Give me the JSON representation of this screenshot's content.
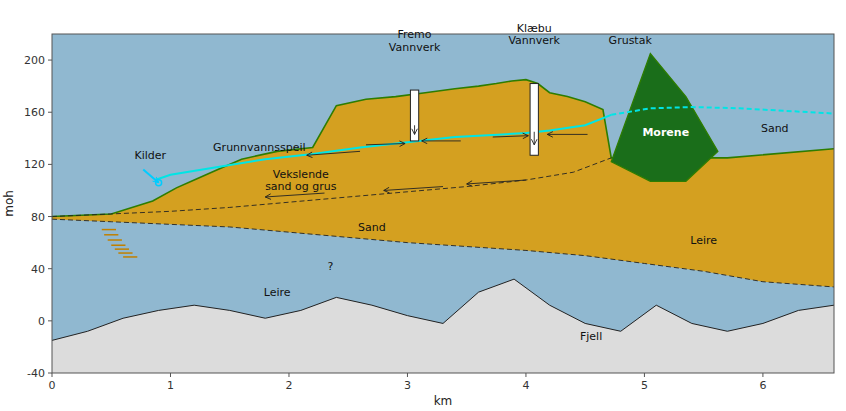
{
  "chart_data": {
    "type": "section",
    "xlabel": "km",
    "ylabel": "moh",
    "xlim": [
      0,
      6.6
    ],
    "ylim": [
      -40,
      220
    ],
    "xticks": [
      0,
      1,
      2,
      3,
      4,
      5,
      6
    ],
    "yticks": [
      -40,
      0,
      40,
      80,
      120,
      160,
      200
    ],
    "leire": {
      "color": "#90b8d0",
      "x": [
        0,
        6.6,
        6.6,
        0
      ],
      "y": [
        -40,
        -40,
        220,
        220
      ]
    },
    "fjell": {
      "color": "#dcdcdc",
      "x": [
        0.0,
        0.3,
        0.6,
        0.9,
        1.2,
        1.5,
        1.8,
        2.1,
        2.4,
        2.7,
        3.0,
        3.3,
        3.6,
        3.9,
        4.2,
        4.5,
        4.8,
        5.1,
        5.4,
        5.7,
        6.0,
        6.3,
        6.6
      ],
      "y": [
        -15,
        -8,
        2,
        8,
        12,
        8,
        2,
        8,
        18,
        12,
        4,
        -2,
        22,
        32,
        12,
        -2,
        -8,
        12,
        -2,
        -8,
        -2,
        8,
        12
      ],
      "base": -40
    },
    "leire_top": {
      "line_style": "dashed",
      "x": [
        0.0,
        0.5,
        1.0,
        1.5,
        2.0,
        2.5,
        3.0,
        3.5,
        4.0,
        4.5,
        5.0,
        5.5,
        6.0,
        6.6
      ],
      "y": [
        78,
        76,
        74,
        72,
        68,
        64,
        60,
        57,
        54,
        50,
        44,
        38,
        30,
        26
      ]
    },
    "sand": {
      "color": "#d4a020",
      "outline": "#2e7d00",
      "x": [
        0.0,
        0.5,
        0.85,
        1.05,
        1.2,
        1.4,
        1.6,
        1.9,
        2.2,
        2.4,
        2.65,
        2.9,
        3.15,
        3.4,
        3.6,
        3.75,
        3.88,
        4.0,
        4.1,
        4.2,
        4.35,
        4.5,
        4.65,
        4.72,
        5.7,
        6.6
      ],
      "y": [
        80,
        82,
        92,
        102,
        108,
        116,
        124,
        130,
        133,
        165,
        170,
        172,
        175,
        178,
        180,
        182,
        184,
        185,
        182,
        175,
        172,
        168,
        162,
        125,
        125,
        132
      ]
    },
    "morene": {
      "color": "#1a6e1a",
      "outline": "#2e7d00",
      "x": [
        4.72,
        5.05,
        5.35,
        5.62,
        5.35,
        5.05,
        4.72
      ],
      "y": [
        122,
        205,
        172,
        130,
        107,
        107,
        122
      ]
    },
    "vsg_boundary": {
      "line_style": "dashed",
      "x": [
        0.0,
        0.5,
        1.0,
        1.5,
        2.0,
        2.5,
        3.0,
        3.5,
        4.0,
        4.4,
        4.72
      ],
      "y": [
        80,
        82,
        84,
        87,
        91,
        95,
        99,
        103,
        108,
        114,
        125
      ]
    },
    "groundwater": {
      "color": "#00e5e5",
      "segments": [
        {
          "line_style": "solid",
          "x": [
            0.87,
            1.0,
            1.4,
            1.8,
            2.2,
            2.6,
            3.0,
            3.4,
            3.8,
            4.0,
            4.2,
            4.5,
            4.72
          ],
          "y": [
            108,
            112,
            118,
            124,
            128,
            133,
            137,
            141,
            143,
            144,
            146,
            150,
            158
          ]
        },
        {
          "line_style": "dashed",
          "x": [
            4.72,
            5.05,
            5.4,
            5.8,
            6.2,
            6.6
          ],
          "y": [
            158,
            163,
            164,
            163,
            161,
            159
          ]
        }
      ]
    },
    "boreholes": [
      {
        "x": 3.06,
        "half_width": 0.035,
        "bottom": 138,
        "top": 177
      },
      {
        "x": 4.07,
        "half_width": 0.035,
        "bottom": 127,
        "top": 182
      }
    ],
    "kilder": {
      "color": "#00ccff",
      "x": [
        0.77,
        0.9
      ],
      "y": [
        116,
        106
      ]
    },
    "seeps": {
      "color": "#c08000",
      "half_length": 0.06,
      "x": [
        0.48,
        0.5,
        0.53,
        0.56,
        0.59,
        0.62,
        0.66
      ],
      "y": [
        70,
        66,
        62,
        58,
        55,
        52,
        49
      ]
    },
    "flow_arrows": [
      {
        "x": [
          3.45,
          3.12
        ],
        "y": [
          138,
          138
        ]
      },
      {
        "x": [
          2.65,
          2.98
        ],
        "y": [
          135,
          136
        ]
      },
      {
        "x": [
          4.52,
          4.18
        ],
        "y": [
          143,
          143
        ]
      },
      {
        "x": [
          3.72,
          4.02
        ],
        "y": [
          141,
          142
        ]
      },
      {
        "x": [
          2.3,
          1.8
        ],
        "y": [
          98,
          95
        ]
      },
      {
        "x": [
          3.3,
          2.8
        ],
        "y": [
          103,
          100
        ]
      },
      {
        "x": [
          4.0,
          3.5
        ],
        "y": [
          108,
          105
        ]
      },
      {
        "x": [
          2.6,
          2.15
        ],
        "y": [
          130,
          127
        ]
      },
      {
        "x": [
          3.06,
          3.06
        ],
        "y": [
          150,
          143
        ]
      },
      {
        "x": [
          4.07,
          4.07
        ],
        "y": [
          145,
          135
        ]
      }
    ],
    "labels": [
      {
        "text": "Sand",
        "x": 2.7,
        "y": 72
      },
      {
        "text": "Sand",
        "x": 6.1,
        "y": 148
      },
      {
        "text": "Leire",
        "x": 1.9,
        "y": 22
      },
      {
        "text": "Leire",
        "x": 5.5,
        "y": 62
      },
      {
        "text": "Fjell",
        "x": 4.55,
        "y": -12
      },
      {
        "text": "Morene",
        "x": 5.18,
        "y": 145,
        "color": "white"
      },
      {
        "text": "Vekslende\nsand og grus",
        "x": 2.1,
        "y": 108
      },
      {
        "text": "Grunnvannsspeil",
        "x": 1.75,
        "y": 128
      },
      {
        "text": "Kilder",
        "x": 0.83,
        "y": 122
      },
      {
        "text": "?",
        "x": 2.35,
        "y": 42
      },
      {
        "text": "Fremo\nVannverk",
        "x": 3.06,
        "y": 205
      },
      {
        "text": "Klæbu\nVannverk",
        "x": 4.07,
        "y": 210
      },
      {
        "text": "Grustak",
        "x": 4.88,
        "y": 210
      }
    ]
  }
}
